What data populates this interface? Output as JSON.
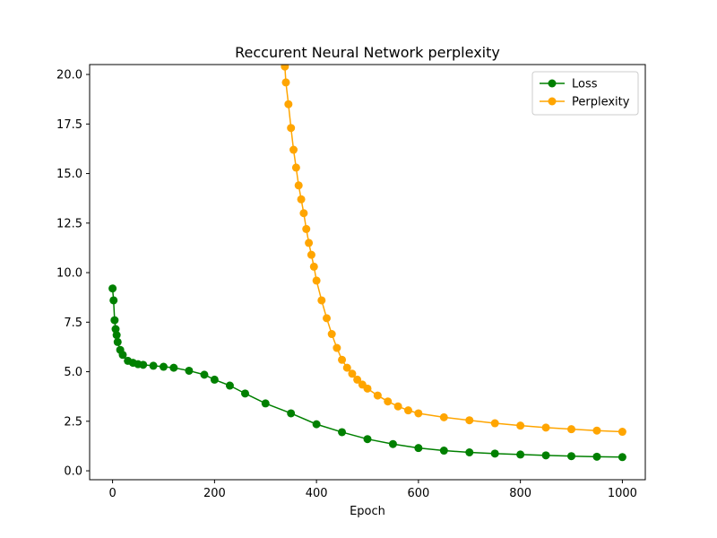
{
  "chart_data": {
    "type": "line",
    "title": "Reccurent Neural Network perplexity",
    "xlabel": "Epoch",
    "ylabel": "",
    "xlim": [
      -45,
      1045
    ],
    "ylim": [
      -0.45,
      20.5
    ],
    "xticks": [
      0,
      200,
      400,
      600,
      800,
      1000
    ],
    "yticks": [
      0.0,
      2.5,
      5.0,
      7.5,
      10.0,
      12.5,
      15.0,
      17.5,
      20.0
    ],
    "xtick_labels": [
      "0",
      "200",
      "400",
      "600",
      "800",
      "1000"
    ],
    "ytick_labels": [
      "0.0",
      "2.5",
      "5.0",
      "7.5",
      "10.0",
      "12.5",
      "15.0",
      "17.5",
      "20.0"
    ],
    "grid": false,
    "legend": "top-right",
    "marker": "circle",
    "series": [
      {
        "name": "Loss",
        "color": "#008000",
        "x": [
          0,
          2,
          4,
          6,
          8,
          10,
          15,
          20,
          30,
          40,
          50,
          60,
          80,
          100,
          120,
          150,
          180,
          200,
          230,
          260,
          300,
          350,
          400,
          450,
          500,
          550,
          600,
          650,
          700,
          750,
          800,
          850,
          900,
          950,
          1000
        ],
        "y": [
          9.2,
          8.6,
          7.6,
          7.15,
          6.85,
          6.5,
          6.1,
          5.85,
          5.55,
          5.45,
          5.38,
          5.35,
          5.3,
          5.25,
          5.2,
          5.05,
          4.85,
          4.6,
          4.3,
          3.9,
          3.4,
          2.9,
          2.35,
          1.95,
          1.6,
          1.35,
          1.15,
          1.02,
          0.93,
          0.87,
          0.82,
          0.78,
          0.74,
          0.71,
          0.69
        ]
      },
      {
        "name": "Perplexity",
        "color": "#FFA500",
        "x": [
          338,
          340,
          345,
          350,
          355,
          360,
          365,
          370,
          375,
          380,
          385,
          390,
          395,
          400,
          410,
          420,
          430,
          440,
          450,
          460,
          470,
          480,
          490,
          500,
          520,
          540,
          560,
          580,
          600,
          650,
          700,
          750,
          800,
          850,
          900,
          950,
          1000
        ],
        "y": [
          20.4,
          19.6,
          18.5,
          17.3,
          16.2,
          15.3,
          14.4,
          13.7,
          13.0,
          12.2,
          11.5,
          10.9,
          10.3,
          9.6,
          8.6,
          7.7,
          6.9,
          6.2,
          5.6,
          5.2,
          4.9,
          4.6,
          4.35,
          4.15,
          3.8,
          3.5,
          3.25,
          3.05,
          2.9,
          2.7,
          2.55,
          2.4,
          2.28,
          2.18,
          2.1,
          2.03,
          1.97
        ]
      }
    ]
  }
}
